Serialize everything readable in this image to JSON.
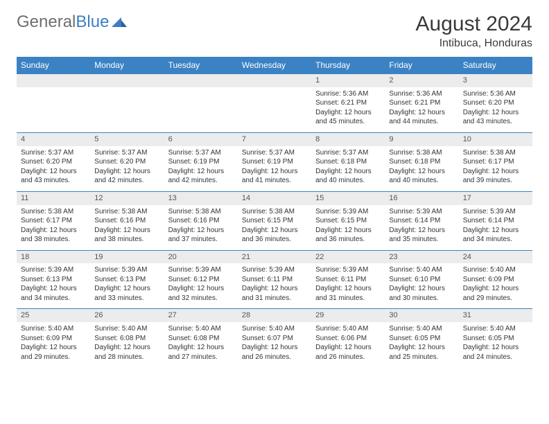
{
  "brand": {
    "part1": "General",
    "part2": "Blue"
  },
  "title": "August 2024",
  "location": "Intibuca, Honduras",
  "colors": {
    "header_bg": "#3b82c4",
    "header_text": "#ffffff",
    "daynum_bg": "#ececec",
    "daynum_border": "#3b82c4",
    "body_text": "#333333",
    "brand_gray": "#6e6e6e",
    "brand_blue": "#3b7fc4"
  },
  "weekdays": [
    "Sunday",
    "Monday",
    "Tuesday",
    "Wednesday",
    "Thursday",
    "Friday",
    "Saturday"
  ],
  "weeks": [
    [
      {
        "n": "",
        "sr": "",
        "ss": "",
        "dl": ""
      },
      {
        "n": "",
        "sr": "",
        "ss": "",
        "dl": ""
      },
      {
        "n": "",
        "sr": "",
        "ss": "",
        "dl": ""
      },
      {
        "n": "",
        "sr": "",
        "ss": "",
        "dl": ""
      },
      {
        "n": "1",
        "sr": "Sunrise: 5:36 AM",
        "ss": "Sunset: 6:21 PM",
        "dl": "Daylight: 12 hours and 45 minutes."
      },
      {
        "n": "2",
        "sr": "Sunrise: 5:36 AM",
        "ss": "Sunset: 6:21 PM",
        "dl": "Daylight: 12 hours and 44 minutes."
      },
      {
        "n": "3",
        "sr": "Sunrise: 5:36 AM",
        "ss": "Sunset: 6:20 PM",
        "dl": "Daylight: 12 hours and 43 minutes."
      }
    ],
    [
      {
        "n": "4",
        "sr": "Sunrise: 5:37 AM",
        "ss": "Sunset: 6:20 PM",
        "dl": "Daylight: 12 hours and 43 minutes."
      },
      {
        "n": "5",
        "sr": "Sunrise: 5:37 AM",
        "ss": "Sunset: 6:20 PM",
        "dl": "Daylight: 12 hours and 42 minutes."
      },
      {
        "n": "6",
        "sr": "Sunrise: 5:37 AM",
        "ss": "Sunset: 6:19 PM",
        "dl": "Daylight: 12 hours and 42 minutes."
      },
      {
        "n": "7",
        "sr": "Sunrise: 5:37 AM",
        "ss": "Sunset: 6:19 PM",
        "dl": "Daylight: 12 hours and 41 minutes."
      },
      {
        "n": "8",
        "sr": "Sunrise: 5:37 AM",
        "ss": "Sunset: 6:18 PM",
        "dl": "Daylight: 12 hours and 40 minutes."
      },
      {
        "n": "9",
        "sr": "Sunrise: 5:38 AM",
        "ss": "Sunset: 6:18 PM",
        "dl": "Daylight: 12 hours and 40 minutes."
      },
      {
        "n": "10",
        "sr": "Sunrise: 5:38 AM",
        "ss": "Sunset: 6:17 PM",
        "dl": "Daylight: 12 hours and 39 minutes."
      }
    ],
    [
      {
        "n": "11",
        "sr": "Sunrise: 5:38 AM",
        "ss": "Sunset: 6:17 PM",
        "dl": "Daylight: 12 hours and 38 minutes."
      },
      {
        "n": "12",
        "sr": "Sunrise: 5:38 AM",
        "ss": "Sunset: 6:16 PM",
        "dl": "Daylight: 12 hours and 38 minutes."
      },
      {
        "n": "13",
        "sr": "Sunrise: 5:38 AM",
        "ss": "Sunset: 6:16 PM",
        "dl": "Daylight: 12 hours and 37 minutes."
      },
      {
        "n": "14",
        "sr": "Sunrise: 5:38 AM",
        "ss": "Sunset: 6:15 PM",
        "dl": "Daylight: 12 hours and 36 minutes."
      },
      {
        "n": "15",
        "sr": "Sunrise: 5:39 AM",
        "ss": "Sunset: 6:15 PM",
        "dl": "Daylight: 12 hours and 36 minutes."
      },
      {
        "n": "16",
        "sr": "Sunrise: 5:39 AM",
        "ss": "Sunset: 6:14 PM",
        "dl": "Daylight: 12 hours and 35 minutes."
      },
      {
        "n": "17",
        "sr": "Sunrise: 5:39 AM",
        "ss": "Sunset: 6:14 PM",
        "dl": "Daylight: 12 hours and 34 minutes."
      }
    ],
    [
      {
        "n": "18",
        "sr": "Sunrise: 5:39 AM",
        "ss": "Sunset: 6:13 PM",
        "dl": "Daylight: 12 hours and 34 minutes."
      },
      {
        "n": "19",
        "sr": "Sunrise: 5:39 AM",
        "ss": "Sunset: 6:13 PM",
        "dl": "Daylight: 12 hours and 33 minutes."
      },
      {
        "n": "20",
        "sr": "Sunrise: 5:39 AM",
        "ss": "Sunset: 6:12 PM",
        "dl": "Daylight: 12 hours and 32 minutes."
      },
      {
        "n": "21",
        "sr": "Sunrise: 5:39 AM",
        "ss": "Sunset: 6:11 PM",
        "dl": "Daylight: 12 hours and 31 minutes."
      },
      {
        "n": "22",
        "sr": "Sunrise: 5:39 AM",
        "ss": "Sunset: 6:11 PM",
        "dl": "Daylight: 12 hours and 31 minutes."
      },
      {
        "n": "23",
        "sr": "Sunrise: 5:40 AM",
        "ss": "Sunset: 6:10 PM",
        "dl": "Daylight: 12 hours and 30 minutes."
      },
      {
        "n": "24",
        "sr": "Sunrise: 5:40 AM",
        "ss": "Sunset: 6:09 PM",
        "dl": "Daylight: 12 hours and 29 minutes."
      }
    ],
    [
      {
        "n": "25",
        "sr": "Sunrise: 5:40 AM",
        "ss": "Sunset: 6:09 PM",
        "dl": "Daylight: 12 hours and 29 minutes."
      },
      {
        "n": "26",
        "sr": "Sunrise: 5:40 AM",
        "ss": "Sunset: 6:08 PM",
        "dl": "Daylight: 12 hours and 28 minutes."
      },
      {
        "n": "27",
        "sr": "Sunrise: 5:40 AM",
        "ss": "Sunset: 6:08 PM",
        "dl": "Daylight: 12 hours and 27 minutes."
      },
      {
        "n": "28",
        "sr": "Sunrise: 5:40 AM",
        "ss": "Sunset: 6:07 PM",
        "dl": "Daylight: 12 hours and 26 minutes."
      },
      {
        "n": "29",
        "sr": "Sunrise: 5:40 AM",
        "ss": "Sunset: 6:06 PM",
        "dl": "Daylight: 12 hours and 26 minutes."
      },
      {
        "n": "30",
        "sr": "Sunrise: 5:40 AM",
        "ss": "Sunset: 6:05 PM",
        "dl": "Daylight: 12 hours and 25 minutes."
      },
      {
        "n": "31",
        "sr": "Sunrise: 5:40 AM",
        "ss": "Sunset: 6:05 PM",
        "dl": "Daylight: 12 hours and 24 minutes."
      }
    ]
  ]
}
